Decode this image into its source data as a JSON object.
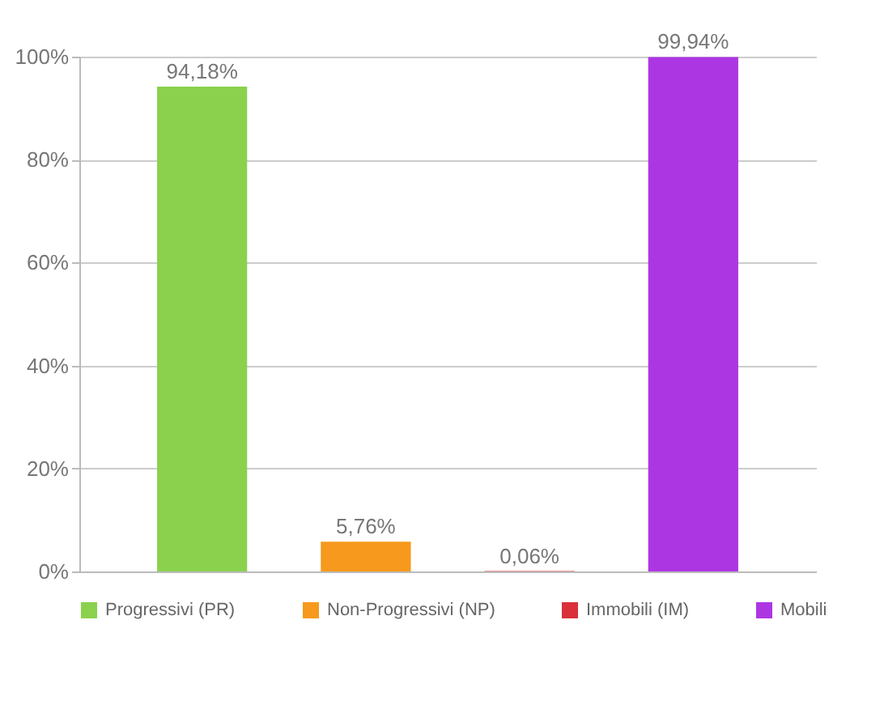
{
  "chart_data": {
    "type": "bar",
    "categories": [
      null
    ],
    "series": [
      {
        "name": "Progressivi (PR)",
        "color": "#8bd14e",
        "values": [
          94.18
        ],
        "value_labels": [
          "94,18%"
        ]
      },
      {
        "name": "Non-Progressivi (NP)",
        "color": "#f7991c",
        "values": [
          5.76
        ],
        "value_labels": [
          "5,76%"
        ]
      },
      {
        "name": "Immobili (IM)",
        "color": "#d9303a",
        "values": [
          0.06
        ],
        "value_labels": [
          "0,06%"
        ]
      },
      {
        "name": "Mobili",
        "color": "#ad36e3",
        "values": [
          99.94
        ],
        "value_labels": [
          "99,94%"
        ]
      }
    ],
    "ylim": [
      0,
      100
    ],
    "yticks": [
      {
        "value": 0,
        "label": "0%"
      },
      {
        "value": 20,
        "label": "20%"
      },
      {
        "value": 40,
        "label": "40%"
      },
      {
        "value": 60,
        "label": "60%"
      },
      {
        "value": 80,
        "label": "80%"
      },
      {
        "value": 100,
        "label": "100%"
      }
    ],
    "grid": "y",
    "legend": "bottom",
    "tick_labels": "y"
  }
}
